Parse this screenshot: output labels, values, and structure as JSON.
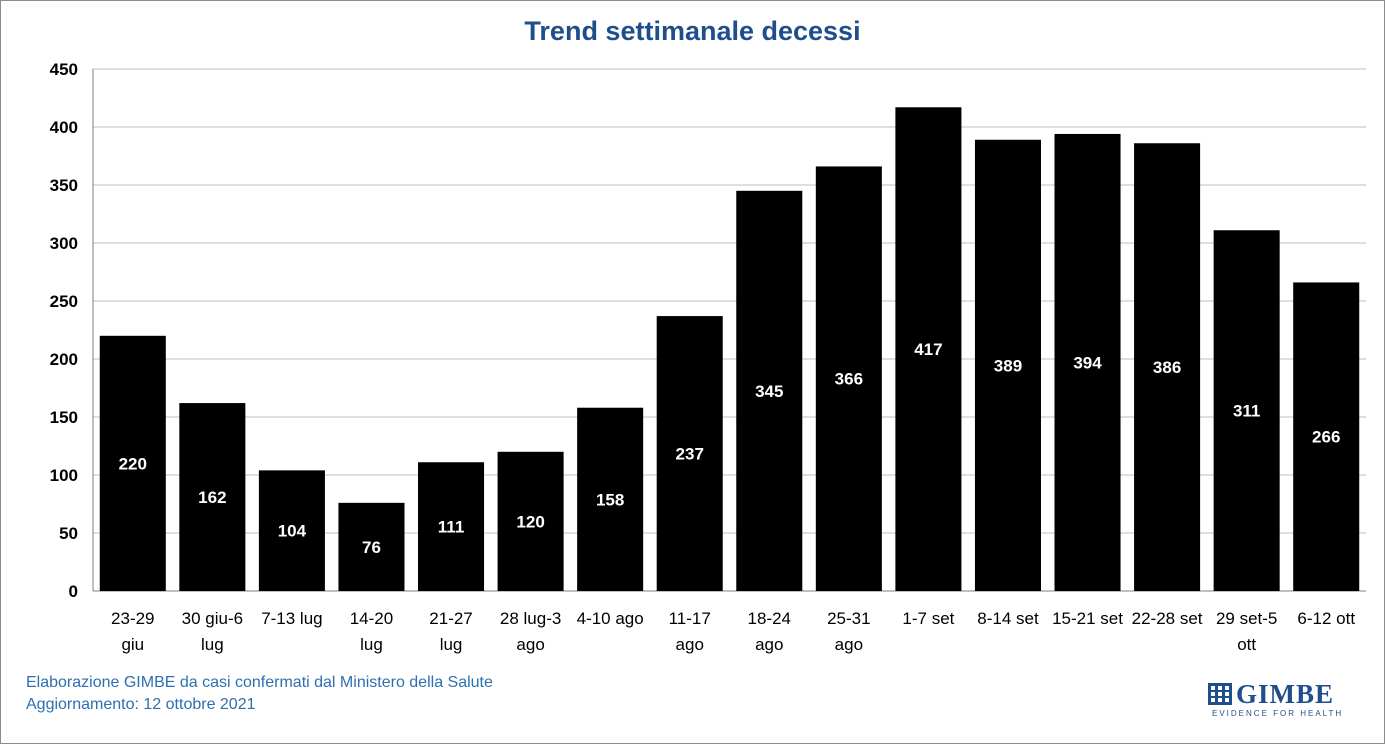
{
  "footer": {
    "line1": "Elaborazione GIMBE da casi confermati dal Ministero della Salute",
    "line2": "Aggiornamento: 12 ottobre 2021"
  },
  "logo": {
    "name": "GIMBE",
    "tagline": "EVIDENCE FOR HEALTH"
  },
  "colors": {
    "bar": "#000000",
    "title": "#1f4e8c",
    "footer": "#2e6fb0",
    "grid": "#bfbfbf"
  },
  "chart_data": {
    "type": "bar",
    "title": "Trend settimanale decessi",
    "xlabel": "",
    "ylabel": "",
    "ylim": [
      0,
      450
    ],
    "yticks": [
      0,
      50,
      100,
      150,
      200,
      250,
      300,
      350,
      400,
      450
    ],
    "grid": true,
    "legend": "none",
    "categories": [
      [
        "23-29",
        "giu"
      ],
      [
        "30 giu-6",
        "lug"
      ],
      [
        "7-13 lug"
      ],
      [
        "14-20",
        "lug"
      ],
      [
        "21-27",
        "lug"
      ],
      [
        "28 lug-3",
        "ago"
      ],
      [
        "4-10 ago"
      ],
      [
        "11-17",
        "ago"
      ],
      [
        "18-24",
        "ago"
      ],
      [
        "25-31",
        "ago"
      ],
      [
        "1-7 set"
      ],
      [
        "8-14 set"
      ],
      [
        "15-21 set"
      ],
      [
        "22-28 set"
      ],
      [
        "29 set-5",
        "ott"
      ],
      [
        "6-12 ott"
      ]
    ],
    "values": [
      220,
      162,
      104,
      76,
      111,
      120,
      158,
      237,
      345,
      366,
      417,
      389,
      394,
      386,
      311,
      266
    ]
  }
}
